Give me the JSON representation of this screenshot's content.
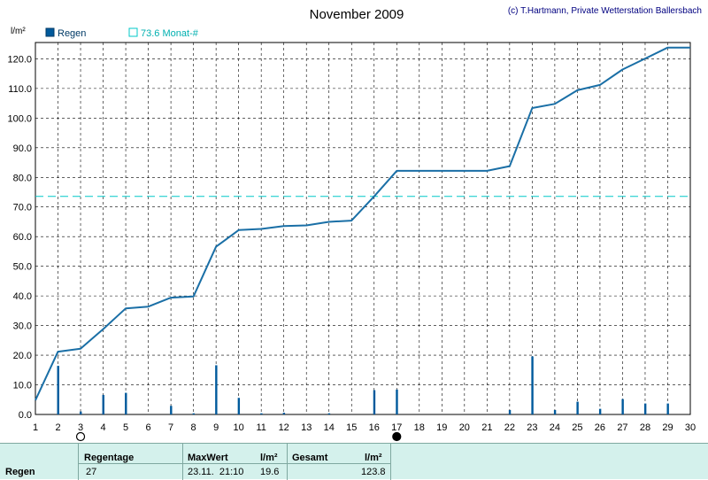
{
  "chart_data": {
    "type": "line",
    "title": "November 2009",
    "copyright": "(c) T.Hartmann, Private Wetterstation Ballersbach",
    "yunit": "l/m²",
    "ylim": [
      0,
      120
    ],
    "yticks": [
      "0.0",
      "10.0",
      "20.0",
      "30.0",
      "40.0",
      "50.0",
      "60.0",
      "70.0",
      "80.0",
      "90.0",
      "100.0",
      "110.0",
      "120.0"
    ],
    "xlim": [
      1,
      30
    ],
    "xticks": [
      "1",
      "2",
      "3",
      "4",
      "5",
      "6",
      "7",
      "8",
      "9",
      "10",
      "11",
      "12",
      "13",
      "14",
      "15",
      "16",
      "17",
      "18",
      "19",
      "20",
      "21",
      "22",
      "23",
      "24",
      "25",
      "26",
      "27",
      "28",
      "29",
      "30"
    ],
    "grid": true,
    "legend": [
      {
        "label": "Regen",
        "color": "#005a9c",
        "marker": "filled-square"
      },
      {
        "label": "73.6 Monat-#",
        "color": "#00c8c8",
        "marker": "hollow-square"
      }
    ],
    "series": [
      {
        "name": "Regen",
        "kind": "bar",
        "color": "#005a9c",
        "x": [
          2,
          3,
          4,
          5,
          7,
          8,
          9,
          10,
          11,
          12,
          14,
          16,
          17,
          22,
          23,
          24,
          25,
          26,
          27,
          28,
          29
        ],
        "values": [
          16.4,
          1.0,
          6.6,
          7.3,
          2.9,
          0.4,
          16.6,
          5.6,
          0.4,
          0.6,
          0.4,
          8.2,
          8.4,
          1.5,
          19.6,
          1.5,
          4.3,
          1.9,
          5.2,
          3.7,
          3.7
        ]
      },
      {
        "name": "cumulative",
        "kind": "line",
        "color": "#1a6fa6",
        "x": [
          1,
          2,
          3,
          4,
          5,
          6,
          7,
          8,
          9,
          10,
          11,
          12,
          13,
          14,
          15,
          16,
          17,
          18,
          19,
          20,
          21,
          22,
          23,
          24,
          25,
          26,
          27,
          28,
          29,
          30
        ],
        "values": [
          4.8,
          21.2,
          22.2,
          28.8,
          35.8,
          36.4,
          39.4,
          39.8,
          56.6,
          62.2,
          62.6,
          63.6,
          63.8,
          65.0,
          65.4,
          73.6,
          82.2,
          82.2,
          82.2,
          82.2,
          82.2,
          83.8,
          103.4,
          104.8,
          109.4,
          111.2,
          116.4,
          120.1,
          123.8,
          123.8
        ]
      },
      {
        "name": "73.6 Monat-#",
        "kind": "hline",
        "color": "#00c8c8",
        "value": 73.6
      }
    ],
    "moon_phases": [
      {
        "x": 3,
        "phase": "full"
      },
      {
        "x": 17,
        "phase": "new"
      }
    ]
  },
  "summary": {
    "row_label": "Regen",
    "regentage_label": "Regentage",
    "regentage_value": "27",
    "maxwert_label": "MaxWert",
    "maxwert_unit": "l/m²",
    "maxwert_time": "23.11.  21:10",
    "maxwert_value": "19.6",
    "gesamt_label": "Gesamt",
    "gesamt_unit": "l/m²",
    "gesamt_value": "123.8"
  }
}
